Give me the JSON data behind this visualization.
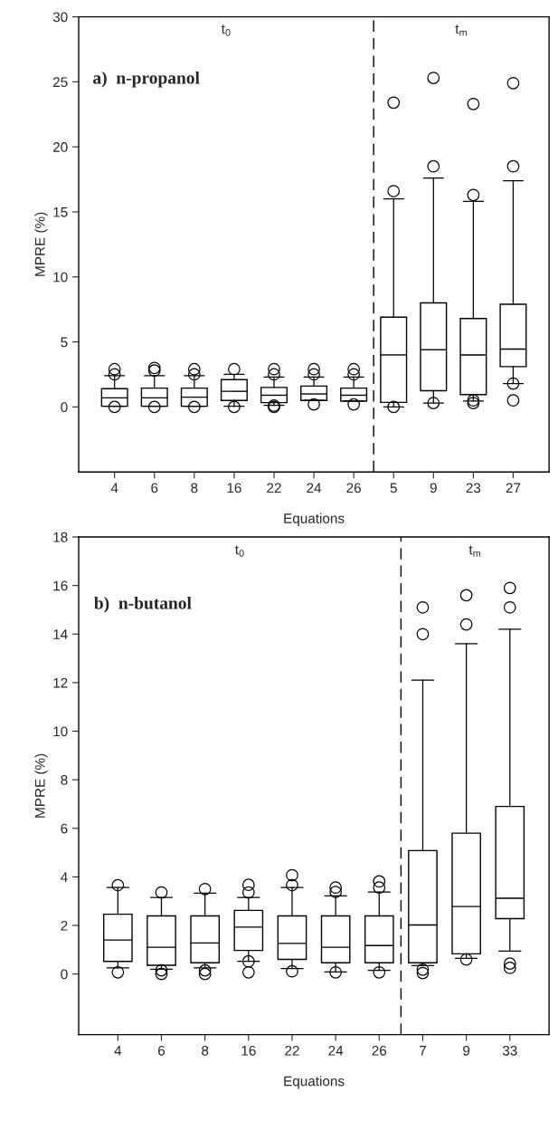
{
  "chart_data": [
    {
      "type": "box",
      "xlabel": "Equations",
      "ylabel": "MPRE (%)",
      "categories": [
        "4",
        "6",
        "8",
        "16",
        "22",
        "24",
        "26",
        "5",
        "9",
        "23",
        "27"
      ],
      "ylim": [
        -5,
        30
      ],
      "yticks": [
        0,
        5,
        10,
        15,
        20,
        25,
        30
      ],
      "grid": false,
      "annotations": [
        "t$_{0}$",
        "t$_{m}$",
        "a)  n-propanol"
      ],
      "boxes": [
        {
          "low": 0.05,
          "q1": 0.05,
          "median": 0.7,
          "q3": 1.4,
          "high": 2.4,
          "outliers": [
            0.0,
            2.5,
            2.9
          ]
        },
        {
          "low": 0.05,
          "q1": 0.05,
          "median": 0.7,
          "q3": 1.45,
          "high": 2.4,
          "outliers": [
            0.0,
            2.8,
            3.0
          ]
        },
        {
          "low": 0.05,
          "q1": 0.05,
          "median": 0.75,
          "q3": 1.45,
          "high": 2.4,
          "outliers": [
            0.0,
            2.5,
            2.9
          ]
        },
        {
          "low": 0.05,
          "q1": 0.5,
          "median": 1.2,
          "q3": 2.1,
          "high": 2.5,
          "outliers": [
            0.0,
            2.9
          ]
        },
        {
          "low": 0.12,
          "q1": 0.33,
          "median": 0.9,
          "q3": 1.5,
          "high": 2.3,
          "outliers": [
            0.0,
            0.1,
            2.5,
            2.9
          ]
        },
        {
          "low": 0.5,
          "q1": 0.5,
          "median": 1.0,
          "q3": 1.6,
          "high": 2.3,
          "outliers": [
            0.2,
            2.5,
            2.9
          ]
        },
        {
          "low": 0.45,
          "q1": 0.45,
          "median": 0.9,
          "q3": 1.45,
          "high": 2.3,
          "outliers": [
            0.2,
            2.5,
            2.9
          ]
        },
        {
          "low": 0.0,
          "q1": 0.35,
          "median": 4.0,
          "q3": 6.9,
          "high": 16.0,
          "outliers": [
            0.0,
            16.6,
            23.4
          ]
        },
        {
          "low": 0.3,
          "q1": 1.25,
          "median": 4.4,
          "q3": 8.0,
          "high": 17.6,
          "outliers": [
            0.3,
            18.5,
            25.3
          ]
        },
        {
          "low": 0.45,
          "q1": 0.95,
          "median": 4.0,
          "q3": 6.8,
          "high": 15.8,
          "outliers": [
            0.3,
            0.5,
            16.3,
            23.3
          ]
        },
        {
          "low": 1.8,
          "q1": 3.1,
          "median": 4.45,
          "q3": 7.9,
          "high": 17.4,
          "outliers": [
            0.5,
            1.8,
            18.5,
            24.9
          ]
        }
      ]
    },
    {
      "type": "box",
      "xlabel": "Equations",
      "ylabel": "MPRE (%)",
      "categories": [
        "4",
        "6",
        "8",
        "16",
        "22",
        "24",
        "26",
        "7",
        "9",
        "33"
      ],
      "ylim": [
        -2.5,
        18
      ],
      "yticks": [
        0,
        2,
        4,
        6,
        8,
        10,
        12,
        14,
        16,
        18
      ],
      "grid": false,
      "annotations": [
        "t$_{0}$",
        "t$_{m}$",
        "b)  n-butanol"
      ],
      "boxes": [
        {
          "low": 0.25,
          "q1": 0.52,
          "median": 1.4,
          "q3": 2.46,
          "high": 3.56,
          "outliers": [
            0.07,
            3.66
          ]
        },
        {
          "low": 0.2,
          "q1": 0.36,
          "median": 1.1,
          "q3": 2.39,
          "high": 3.15,
          "outliers": [
            0.0,
            0.15,
            3.36
          ]
        },
        {
          "low": 0.25,
          "q1": 0.46,
          "median": 1.28,
          "q3": 2.39,
          "high": 3.33,
          "outliers": [
            0.0,
            0.15,
            3.5
          ]
        },
        {
          "low": 0.52,
          "q1": 0.97,
          "median": 1.93,
          "q3": 2.62,
          "high": 3.15,
          "outliers": [
            0.07,
            0.52,
            3.36,
            3.67
          ]
        },
        {
          "low": 0.22,
          "q1": 0.6,
          "median": 1.26,
          "q3": 2.39,
          "high": 3.56,
          "outliers": [
            0.11,
            3.66,
            4.07
          ]
        },
        {
          "low": 0.08,
          "q1": 0.46,
          "median": 1.1,
          "q3": 2.39,
          "high": 3.22,
          "outliers": [
            0.07,
            3.38,
            3.56
          ]
        },
        {
          "low": 0.15,
          "q1": 0.46,
          "median": 1.17,
          "q3": 2.39,
          "high": 3.38,
          "outliers": [
            0.07,
            3.56,
            3.81
          ]
        },
        {
          "low": 0.35,
          "q1": 0.46,
          "median": 2.02,
          "q3": 5.08,
          "high": 12.1,
          "outliers": [
            0.04,
            0.18,
            14.0,
            15.1
          ]
        },
        {
          "low": 0.64,
          "q1": 0.83,
          "median": 2.78,
          "q3": 5.8,
          "high": 13.6,
          "outliers": [
            0.6,
            14.4,
            15.6
          ]
        },
        {
          "low": 0.94,
          "q1": 2.28,
          "median": 3.12,
          "q3": 6.9,
          "high": 14.2,
          "outliers": [
            0.25,
            0.43,
            15.1,
            15.9
          ]
        }
      ]
    }
  ]
}
